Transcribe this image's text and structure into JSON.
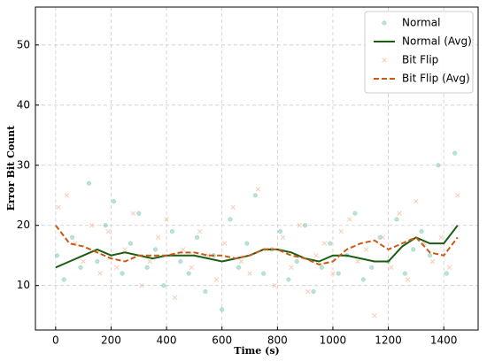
{
  "chart_data": {
    "type": "scatter",
    "xlabel": "Time (s)",
    "ylabel": "Error Bit Count",
    "xlim": [
      -73,
      1524
    ],
    "ylim": [
      2.6,
      56.3
    ],
    "xticks": [
      0,
      200,
      400,
      600,
      800,
      1000,
      1200,
      1400
    ],
    "yticks": [
      10,
      20,
      30,
      40,
      50
    ],
    "grid": true,
    "legend": "upper right",
    "series": [
      {
        "name": "Normal",
        "mark": "circle",
        "color": "#66c2a5",
        "x": [
          5,
          30,
          60,
          90,
          120,
          150,
          180,
          210,
          240,
          270,
          300,
          330,
          360,
          390,
          420,
          450,
          480,
          510,
          540,
          570,
          600,
          630,
          660,
          690,
          720,
          750,
          780,
          810,
          840,
          870,
          900,
          930,
          960,
          990,
          1020,
          1050,
          1080,
          1110,
          1140,
          1170,
          1200,
          1230,
          1260,
          1290,
          1320,
          1350,
          1380,
          1410,
          1440
        ],
        "values": [
          15,
          11,
          18,
          13,
          27,
          14,
          20,
          24,
          12,
          17,
          22,
          13,
          16,
          10,
          19,
          14,
          12,
          18,
          9,
          15,
          6,
          21,
          13,
          17,
          25,
          12,
          16,
          19,
          11,
          14,
          20,
          9,
          13,
          17,
          12,
          15,
          22,
          11,
          13,
          18,
          14,
          21,
          12,
          16,
          19,
          15,
          30,
          12,
          32
        ]
      },
      {
        "name": "Normal (Avg)",
        "mark": "solid",
        "color": "#1b5e12",
        "x": [
          0,
          50,
          100,
          150,
          200,
          250,
          300,
          350,
          400,
          450,
          500,
          550,
          600,
          650,
          700,
          750,
          800,
          850,
          900,
          950,
          1000,
          1050,
          1100,
          1150,
          1200,
          1250,
          1300,
          1350,
          1400,
          1450
        ],
        "values": [
          13,
          14,
          15,
          16,
          15,
          15.5,
          15,
          14.5,
          15,
          15,
          15,
          14.5,
          14,
          14.5,
          15,
          16,
          16,
          15.5,
          14.5,
          14,
          15,
          15,
          14.5,
          14,
          14,
          16.5,
          18,
          17,
          17,
          20
        ]
      },
      {
        "name": "Bit Flip",
        "mark": "cross",
        "color": "#f4a582",
        "x": [
          10,
          40,
          70,
          100,
          130,
          160,
          190,
          220,
          250,
          280,
          310,
          340,
          370,
          400,
          430,
          460,
          490,
          520,
          550,
          580,
          610,
          640,
          670,
          700,
          730,
          760,
          790,
          820,
          850,
          880,
          910,
          940,
          970,
          1000,
          1030,
          1060,
          1090,
          1120,
          1150,
          1180,
          1210,
          1240,
          1270,
          1300,
          1330,
          1360,
          1390,
          1420,
          1450
        ],
        "values": [
          23,
          25,
          17,
          14,
          20,
          12,
          19,
          13,
          16,
          22,
          10,
          14,
          18,
          21,
          8,
          16,
          13,
          19,
          15,
          11,
          17,
          23,
          14,
          12,
          26,
          16,
          10,
          18,
          13,
          20,
          9,
          15,
          17,
          12,
          19,
          21,
          14,
          16,
          5,
          18,
          13,
          22,
          11,
          24,
          17,
          14,
          18,
          13,
          25
        ]
      },
      {
        "name": "Bit Flip (Avg)",
        "mark": "dashed",
        "color": "#cc5a10",
        "x": [
          0,
          50,
          100,
          150,
          200,
          250,
          300,
          350,
          400,
          450,
          500,
          550,
          600,
          650,
          700,
          750,
          800,
          850,
          900,
          950,
          1000,
          1050,
          1100,
          1150,
          1200,
          1250,
          1300,
          1350,
          1400,
          1450
        ],
        "values": [
          20,
          17,
          16.5,
          15.5,
          14.5,
          14,
          15,
          15,
          15,
          15.5,
          15.5,
          15,
          15,
          14.5,
          15,
          16,
          16,
          15,
          14.5,
          13.5,
          14,
          16,
          17,
          17.5,
          16,
          17,
          18,
          15.5,
          15,
          18
        ]
      }
    ]
  }
}
